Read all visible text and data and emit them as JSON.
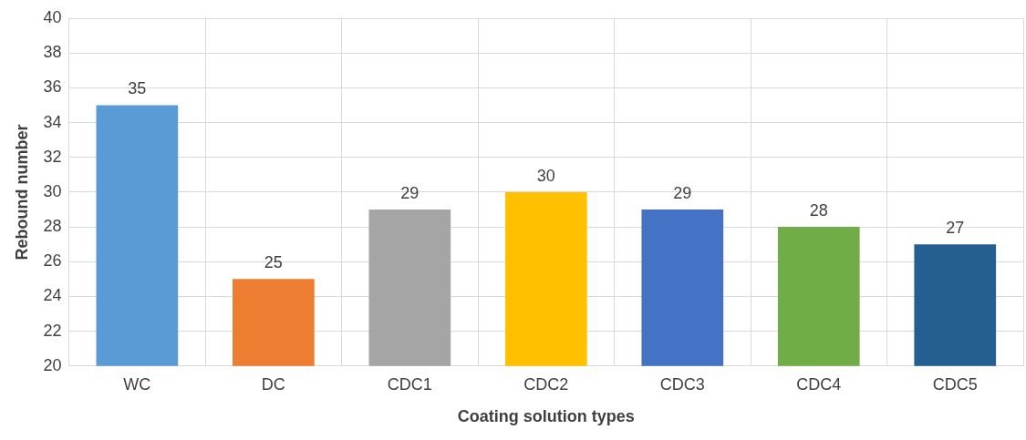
{
  "chart_data": {
    "type": "bar",
    "xlabel": "Coating solution types",
    "ylabel": "Rebound number",
    "categories": [
      "WC",
      "DC",
      "CDC1",
      "CDC2",
      "CDC3",
      "CDC4",
      "CDC5"
    ],
    "values": [
      35,
      25,
      29,
      30,
      29,
      28,
      27
    ],
    "colors": [
      "#5b9bd5",
      "#ed7d31",
      "#a5a5a5",
      "#ffc000",
      "#4472c4",
      "#70ad47",
      "#255e91"
    ],
    "ylim": [
      20,
      40
    ],
    "yticks": [
      20,
      22,
      24,
      26,
      28,
      30,
      32,
      34,
      36,
      38,
      40
    ],
    "grid": true,
    "data_labels": true,
    "legend": false
  }
}
